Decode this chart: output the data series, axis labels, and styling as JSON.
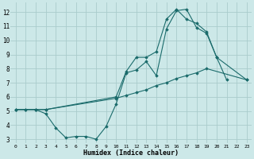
{
  "xlabel": "Humidex (Indice chaleur)",
  "bg_color": "#cce8e8",
  "grid_color": "#aacccc",
  "line_color": "#1a6b6b",
  "xlim": [
    -0.5,
    23.5
  ],
  "ylim": [
    2.7,
    12.7
  ],
  "xticks": [
    0,
    1,
    2,
    3,
    4,
    5,
    6,
    7,
    8,
    9,
    10,
    11,
    12,
    13,
    14,
    15,
    16,
    17,
    18,
    19,
    20,
    21,
    22,
    23
  ],
  "yticks": [
    3,
    4,
    5,
    6,
    7,
    8,
    9,
    10,
    11,
    12
  ],
  "series1_x": [
    0,
    1,
    2,
    3,
    4,
    5,
    6,
    7,
    8,
    9,
    10,
    11,
    12,
    13,
    14,
    15,
    16,
    17,
    18,
    19,
    20,
    21
  ],
  "series1_y": [
    5.1,
    5.1,
    5.1,
    4.8,
    3.8,
    3.1,
    3.2,
    3.2,
    3.0,
    3.9,
    5.5,
    7.7,
    7.9,
    8.5,
    7.5,
    10.8,
    12.1,
    12.2,
    10.9,
    10.5,
    8.8,
    7.2
  ],
  "series2_x": [
    0,
    1,
    2,
    3,
    10,
    11,
    12,
    13,
    14,
    15,
    16,
    17,
    18,
    19,
    23
  ],
  "series2_y": [
    5.1,
    5.1,
    5.1,
    5.1,
    5.9,
    6.1,
    6.3,
    6.5,
    6.8,
    7.0,
    7.3,
    7.5,
    7.7,
    8.0,
    7.2
  ],
  "series3_x": [
    0,
    2,
    3,
    10,
    11,
    12,
    13,
    14,
    15,
    16,
    17,
    18,
    19,
    20,
    23
  ],
  "series3_y": [
    5.1,
    5.1,
    5.1,
    6.0,
    7.8,
    8.8,
    8.8,
    9.2,
    11.5,
    12.2,
    11.5,
    11.2,
    10.6,
    8.8,
    7.2
  ]
}
